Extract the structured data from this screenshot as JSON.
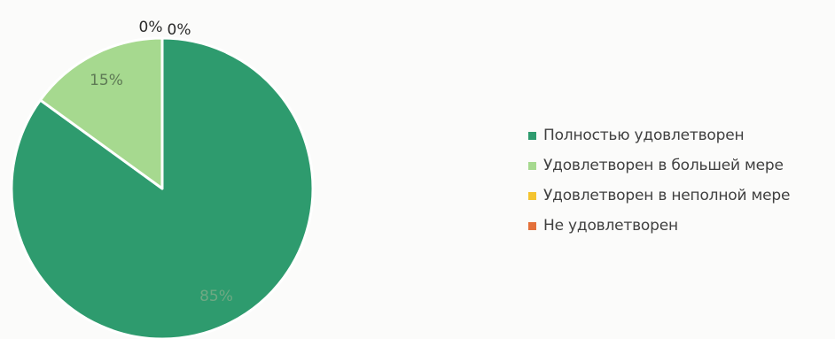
{
  "chart_data": {
    "type": "pie",
    "title": "",
    "categories": [
      "Полностью удовлетворен",
      "Удовлетворен в большей мере",
      "Удовлетворен в неполной мере",
      "Не удовлетворен"
    ],
    "values": [
      85,
      15,
      0,
      0
    ],
    "labels": [
      "85%",
      "15%",
      "0%",
      "0%"
    ],
    "colors": [
      "#2e9b6e",
      "#a6d98f",
      "#f4c430",
      "#e4703a"
    ],
    "label_colors": [
      "#6fa883",
      "#5e7a55",
      "#2b2b2b",
      "#2b2b2b"
    ],
    "legend_position": "right",
    "start_angle": "12 o'clock",
    "direction": "clockwise"
  }
}
